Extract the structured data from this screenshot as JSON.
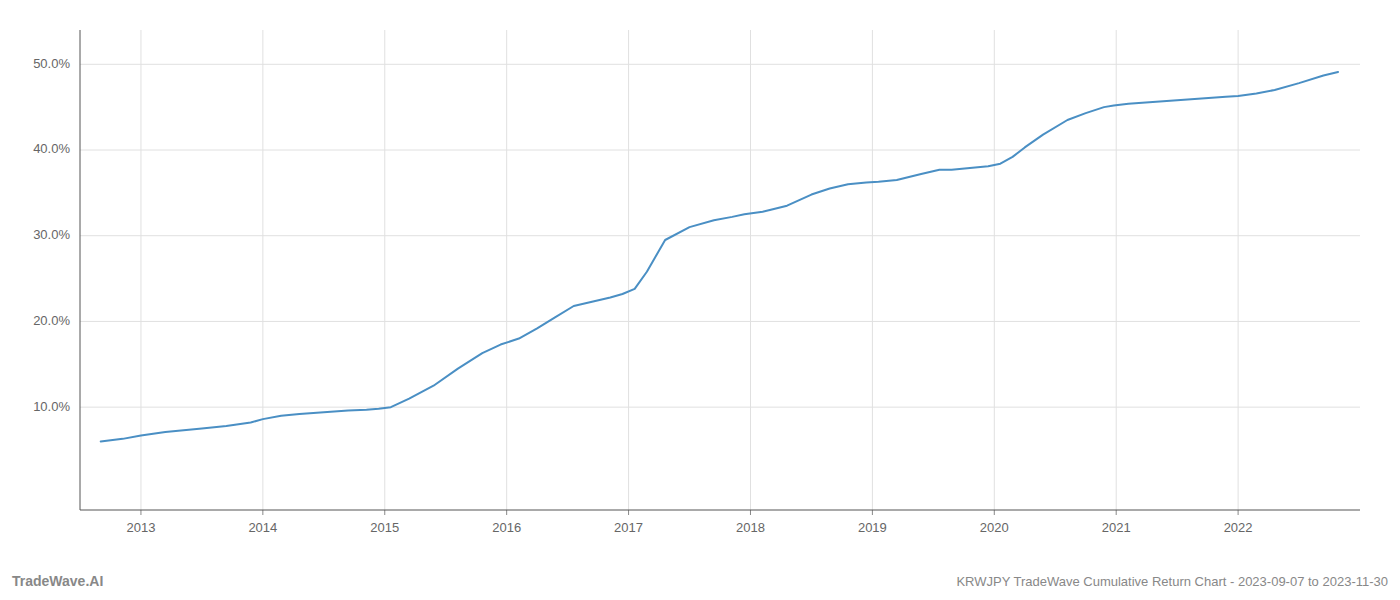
{
  "chart_data": {
    "type": "line",
    "title": "KRWJPY TradeWave Cumulative Return Chart - 2023-09-07 to 2023-11-30",
    "annotations": [
      "TradeWave.AI"
    ],
    "color": "#4a8fc4",
    "grid": true,
    "x": [
      2012.67,
      2012.85,
      2013.0,
      2013.2,
      2013.5,
      2013.7,
      2013.9,
      2014.0,
      2014.15,
      2014.3,
      2014.5,
      2014.7,
      2014.85,
      2014.95,
      2015.05,
      2015.2,
      2015.4,
      2015.6,
      2015.8,
      2015.95,
      2016.1,
      2016.25,
      2016.4,
      2016.55,
      2016.7,
      2016.85,
      2016.95,
      2017.05,
      2017.15,
      2017.3,
      2017.5,
      2017.7,
      2017.85,
      2017.95,
      2018.1,
      2018.3,
      2018.5,
      2018.65,
      2018.8,
      2018.95,
      2019.05,
      2019.2,
      2019.4,
      2019.55,
      2019.65,
      2019.8,
      2019.95,
      2020.05,
      2020.15,
      2020.25,
      2020.4,
      2020.6,
      2020.75,
      2020.9,
      2020.98,
      2021.1,
      2021.3,
      2021.5,
      2021.7,
      2021.9,
      2022.0,
      2022.15,
      2022.3,
      2022.5,
      2022.7,
      2022.82
    ],
    "values": [
      0.06,
      0.063,
      0.067,
      0.071,
      0.075,
      0.078,
      0.082,
      0.086,
      0.09,
      0.092,
      0.094,
      0.096,
      0.097,
      0.098,
      0.1,
      0.11,
      0.125,
      0.145,
      0.163,
      0.173,
      0.18,
      0.192,
      0.205,
      0.218,
      0.223,
      0.228,
      0.232,
      0.238,
      0.258,
      0.295,
      0.31,
      0.318,
      0.322,
      0.325,
      0.328,
      0.335,
      0.348,
      0.355,
      0.36,
      0.362,
      0.363,
      0.365,
      0.372,
      0.377,
      0.377,
      0.379,
      0.381,
      0.384,
      0.392,
      0.403,
      0.418,
      0.435,
      0.443,
      0.45,
      0.452,
      0.454,
      0.456,
      0.458,
      0.46,
      0.462,
      0.463,
      0.466,
      0.47,
      0.478,
      0.487,
      0.491
    ],
    "xlim": [
      2012.5,
      2023.0
    ],
    "xticks": [
      2013,
      2014,
      2015,
      2016,
      2017,
      2018,
      2019,
      2020,
      2021,
      2022
    ],
    "ylim": [
      -0.02,
      0.54
    ],
    "yticks": [
      {
        "value": 0.1,
        "label": "10.0%"
      },
      {
        "value": 0.2,
        "label": "20.0%"
      },
      {
        "value": 0.3,
        "label": "30.0%"
      },
      {
        "value": 0.4,
        "label": "40.0%"
      },
      {
        "value": 0.5,
        "label": "50.0%"
      }
    ]
  }
}
